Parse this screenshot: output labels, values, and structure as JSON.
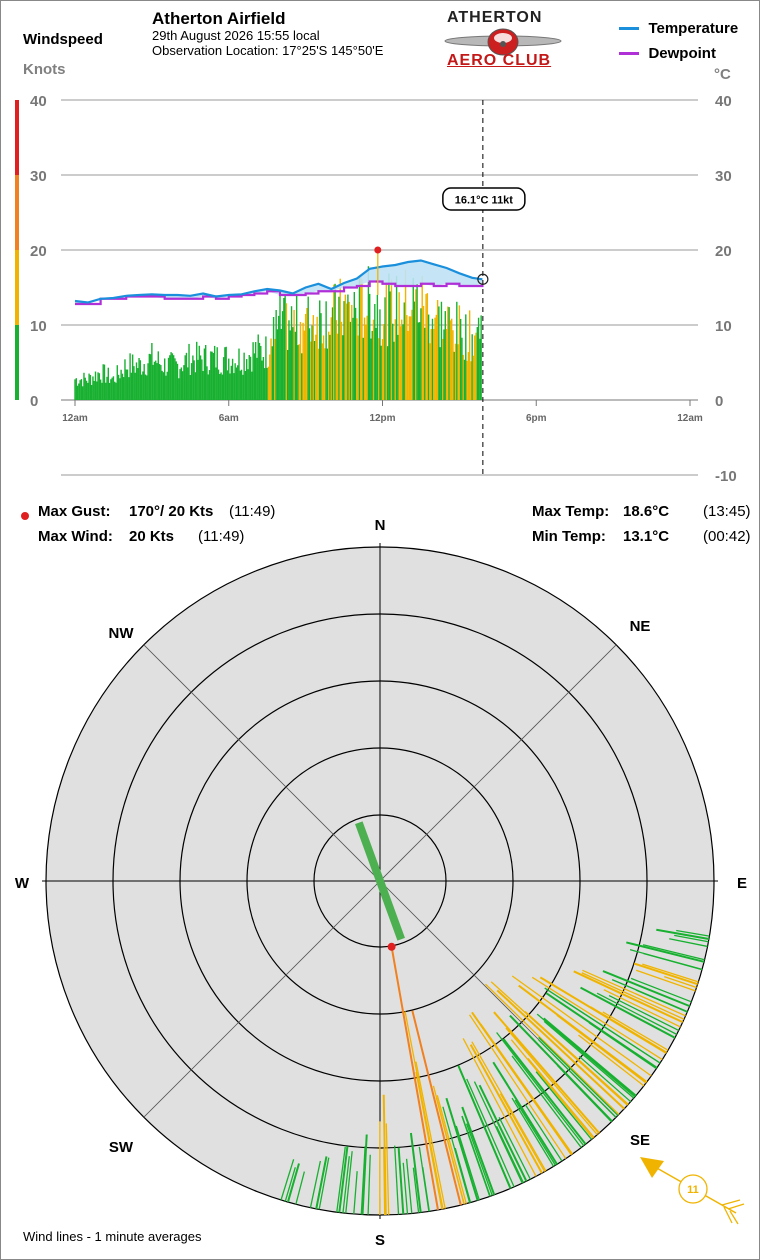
{
  "header": {
    "left_label": "Windspeed",
    "title": "Atherton Airfield",
    "date_time": "29th August 2026  15:55 local",
    "location": "Observation Location: 17°25'S 145°50'E"
  },
  "logo": {
    "line1": "ATHERTON",
    "line2": "AERO CLUB"
  },
  "legend": {
    "items": [
      {
        "label": "Temperature",
        "color": "#1a8fdc"
      },
      {
        "label": "Dewpoint",
        "color": "#b030d8"
      }
    ]
  },
  "chart_data": [
    {
      "type": "line",
      "title": "",
      "left_axis": {
        "unit": "Knots",
        "range": [
          0,
          40
        ],
        "ticks": [
          "0",
          "10",
          "20",
          "30",
          "40"
        ]
      },
      "right_axis": {
        "unit": "°C",
        "range": [
          -10,
          40
        ],
        "ticks": [
          "40",
          "30",
          "20",
          "10",
          "0",
          "-10"
        ]
      },
      "x_axis": {
        "range_hours": [
          0,
          24
        ],
        "ticks": [
          "12am",
          "6am",
          "12pm",
          "6pm",
          "12am"
        ]
      },
      "grid": true,
      "current_marker": {
        "time": "15:55",
        "label": "16.1°C  11kt"
      },
      "series": [
        {
          "name": "Temperature",
          "unit": "°C",
          "color": "#1a8fdc",
          "x_hours": [
            0,
            0.5,
            1,
            1.5,
            2,
            2.5,
            3,
            3.5,
            4,
            4.5,
            5,
            5.5,
            6,
            6.5,
            7,
            7.5,
            8,
            8.5,
            9,
            9.5,
            10,
            10.5,
            11,
            11.5,
            12,
            12.5,
            13,
            13.5,
            14,
            14.5,
            15,
            15.5,
            15.9
          ],
          "y": [
            13.2,
            13.0,
            13.5,
            13.6,
            13.9,
            14.0,
            14.1,
            14.0,
            14.0,
            13.9,
            14.2,
            13.8,
            14.0,
            14.1,
            14.5,
            14.8,
            14.6,
            14.2,
            15.0,
            15.5,
            14.8,
            15.6,
            16.2,
            17.5,
            17.8,
            18.0,
            18.4,
            18.6,
            18.1,
            17.6,
            16.9,
            16.3,
            16.1
          ]
        },
        {
          "name": "Dewpoint",
          "unit": "°C",
          "color": "#b030d8",
          "x_hours": [
            0,
            0.5,
            1,
            1.5,
            2,
            2.5,
            3,
            3.5,
            4,
            4.5,
            5,
            5.5,
            6,
            6.5,
            7,
            7.5,
            8,
            8.5,
            9,
            9.5,
            10,
            10.5,
            11,
            11.5,
            12,
            12.5,
            13,
            13.5,
            14,
            14.5,
            15,
            15.5,
            15.9
          ],
          "y": [
            12.8,
            12.8,
            13.5,
            13.5,
            13.8,
            13.8,
            13.8,
            13.5,
            13.5,
            13.5,
            13.8,
            13.5,
            13.8,
            14.0,
            14.2,
            14.5,
            14.0,
            14.0,
            14.2,
            14.5,
            14.5,
            15.0,
            15.2,
            15.8,
            15.5,
            15.2,
            15.2,
            15.5,
            15.2,
            15.5,
            15.2,
            15.2,
            15.5
          ]
        },
        {
          "name": "Wind speed",
          "unit": "kt",
          "x_hours": [
            0,
            0.5,
            1,
            1.5,
            2,
            2.5,
            3,
            3.5,
            4,
            4.5,
            5,
            5.5,
            6,
            6.5,
            7,
            7.5,
            8,
            8.5,
            9,
            9.5,
            10,
            10.5,
            11,
            11.5,
            12,
            12.5,
            13,
            13.5,
            14,
            14.5,
            15,
            15.5,
            15.9
          ],
          "y": [
            3,
            3,
            4,
            3,
            5,
            5,
            6,
            5,
            5,
            6,
            6,
            6,
            6,
            6,
            7,
            7,
            11,
            11,
            11,
            12,
            12,
            13,
            13,
            14,
            13,
            13,
            14,
            14,
            12,
            11,
            10,
            9,
            11
          ]
        }
      ],
      "gust_marker": {
        "time": "11:49",
        "kts": 20
      },
      "speed_colors": {
        "calm": "#18b030",
        "moderate": "#f0b400",
        "fresh": "#f08020",
        "strong": "#e02020"
      }
    },
    {
      "type": "scatter",
      "subtype": "wind-rose",
      "directions": [
        "N",
        "NE",
        "E",
        "SE",
        "S",
        "SW",
        "W",
        "NW"
      ],
      "ring_values_kts": [
        5,
        10,
        15,
        20,
        25
      ],
      "current_direction_deg": 160,
      "current_speed_kts": 11,
      "points": [
        {
          "dir": 100,
          "kts": 4,
          "color": "#18b030"
        },
        {
          "dir": 104,
          "kts": 6,
          "color": "#18b030"
        },
        {
          "dir": 108,
          "kts": 5,
          "color": "#f0b400"
        },
        {
          "dir": 112,
          "kts": 7,
          "color": "#18b030"
        },
        {
          "dir": 115,
          "kts": 9,
          "color": "#f0b400"
        },
        {
          "dir": 118,
          "kts": 8,
          "color": "#18b030"
        },
        {
          "dir": 121,
          "kts": 11,
          "color": "#f0b400"
        },
        {
          "dir": 124,
          "kts": 10,
          "color": "#18b030"
        },
        {
          "dir": 127,
          "kts": 12,
          "color": "#f0b400"
        },
        {
          "dir": 130,
          "kts": 9,
          "color": "#18b030"
        },
        {
          "dir": 133,
          "kts": 13,
          "color": "#f0b400"
        },
        {
          "dir": 136,
          "kts": 11,
          "color": "#18b030"
        },
        {
          "dir": 139,
          "kts": 12,
          "color": "#f0b400"
        },
        {
          "dir": 142,
          "kts": 10,
          "color": "#18b030"
        },
        {
          "dir": 145,
          "kts": 13,
          "color": "#f0b400"
        },
        {
          "dir": 148,
          "kts": 9,
          "color": "#18b030"
        },
        {
          "dir": 151,
          "kts": 11,
          "color": "#f0b400"
        },
        {
          "dir": 154,
          "kts": 8,
          "color": "#18b030"
        },
        {
          "dir": 157,
          "kts": 10,
          "color": "#18b030"
        },
        {
          "dir": 160,
          "kts": 7,
          "color": "#18b030"
        },
        {
          "dir": 163,
          "kts": 8,
          "color": "#18b030"
        },
        {
          "dir": 166,
          "kts": 15,
          "color": "#f08020"
        },
        {
          "dir": 170,
          "kts": 20,
          "color": "#f08020"
        },
        {
          "dir": 173,
          "kts": 6,
          "color": "#18b030"
        },
        {
          "dir": 176,
          "kts": 5,
          "color": "#18b030"
        },
        {
          "dir": 179,
          "kts": 9,
          "color": "#f0b400"
        },
        {
          "dir": 183,
          "kts": 6,
          "color": "#18b030"
        },
        {
          "dir": 187,
          "kts": 5,
          "color": "#18b030"
        },
        {
          "dir": 191,
          "kts": 4,
          "color": "#18b030"
        },
        {
          "dir": 196,
          "kts": 3,
          "color": "#18b030"
        }
      ]
    }
  ],
  "stats": {
    "max_gust_label": "Max Gust:",
    "max_gust_value": "170°/ 20 Kts",
    "max_gust_time": "(11:49)",
    "max_wind_label": "Max Wind:",
    "max_wind_value": "20 Kts",
    "max_wind_time": "(11:49)",
    "max_temp_label": "Max Temp:",
    "max_temp_value": "18.6°C",
    "max_temp_time": "(13:45)",
    "min_temp_label": "Min Temp:",
    "min_temp_value": "13.1°C",
    "min_temp_time": "(00:42)"
  },
  "footer": {
    "note": "Wind lines - 1 minute averages"
  }
}
